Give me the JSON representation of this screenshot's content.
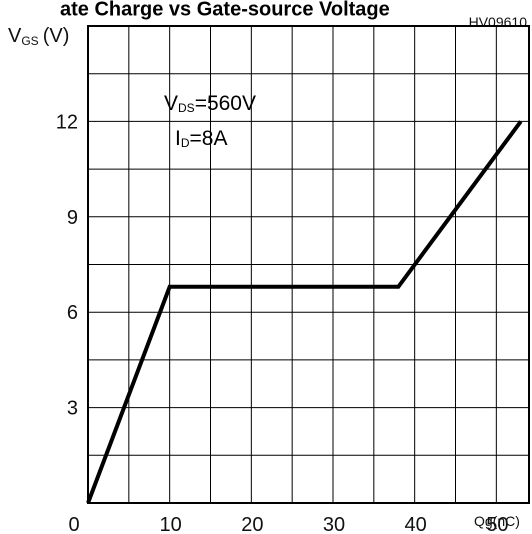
{
  "chart_data": {
    "type": "line",
    "title": "ate Charge vs Gate-source Voltage",
    "figure_id": "HV09610",
    "ylabel": {
      "main": "V",
      "sub": "GS",
      "unit": "(V)"
    },
    "xlabel": "Qg(nC)",
    "xlim": [
      0,
      54
    ],
    "ylim": [
      0,
      15
    ],
    "x_ticks": [
      0,
      10,
      20,
      30,
      40,
      50
    ],
    "y_ticks": [
      3,
      6,
      9,
      12
    ],
    "grid": true,
    "annotations": {
      "vds": {
        "main": "V",
        "sub": "DS",
        "value": "=560V"
      },
      "id": {
        "main": "I",
        "sub": "D",
        "value": "=8A"
      }
    },
    "series": [
      {
        "x": [
          0,
          10,
          38,
          53
        ],
        "y": [
          0,
          6.8,
          6.8,
          12
        ]
      }
    ]
  }
}
